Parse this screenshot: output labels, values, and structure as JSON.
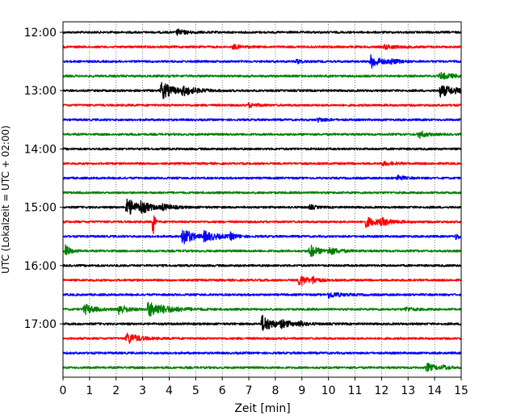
{
  "chart_data": {
    "type": "line",
    "title": "",
    "xlabel": "Zeit  [min]",
    "ylabel": "UTC (Lokalzeit = UTC + 02:00)",
    "xlim": [
      0,
      15
    ],
    "x_ticks": [
      0,
      1,
      2,
      3,
      4,
      5,
      6,
      7,
      8,
      9,
      10,
      11,
      12,
      13,
      14,
      15
    ],
    "y_ticks": [
      "12:00",
      "13:00",
      "14:00",
      "15:00",
      "16:00",
      "17:00"
    ],
    "grid": {
      "vertical": true,
      "style": "dotted"
    },
    "colors": [
      "#000000",
      "#ff0000",
      "#0000ff",
      "#008000"
    ],
    "row_interval_min": 15,
    "traces": [
      {
        "start": "12:00",
        "color": "#000000",
        "events": [
          [
            4.3,
            1.0,
            0.35
          ]
        ]
      },
      {
        "start": "12:15",
        "color": "#ff0000",
        "events": [
          [
            6.4,
            0.8,
            0.3
          ],
          [
            12.1,
            0.8,
            0.4
          ]
        ]
      },
      {
        "start": "12:30",
        "color": "#0000ff",
        "events": [
          [
            8.8,
            0.8,
            0.2
          ],
          [
            11.6,
            2.5,
            0.35
          ],
          [
            12.3,
            0.8,
            0.3
          ]
        ]
      },
      {
        "start": "12:45",
        "color": "#008000",
        "events": [
          [
            14.2,
            1.2,
            0.5
          ]
        ]
      },
      {
        "start": "13:00",
        "color": "#000000",
        "events": [
          [
            3.7,
            3.5,
            0.4
          ],
          [
            4.5,
            1.5,
            0.5
          ],
          [
            14.2,
            2.2,
            0.6
          ]
        ]
      },
      {
        "start": "13:15",
        "color": "#ff0000",
        "events": [
          [
            7.0,
            0.8,
            0.3
          ]
        ]
      },
      {
        "start": "13:30",
        "color": "#0000ff",
        "events": [
          [
            9.6,
            0.7,
            0.3
          ]
        ]
      },
      {
        "start": "13:45",
        "color": "#008000",
        "events": [
          [
            13.4,
            1.5,
            0.25
          ]
        ]
      },
      {
        "start": "14:00",
        "color": "#000000",
        "events": []
      },
      {
        "start": "14:15",
        "color": "#ff0000",
        "events": [
          [
            12.0,
            0.7,
            0.4
          ]
        ]
      },
      {
        "start": "14:30",
        "color": "#0000ff",
        "events": [
          [
            12.6,
            1.2,
            0.2
          ]
        ]
      },
      {
        "start": "14:45",
        "color": "#008000",
        "events": []
      },
      {
        "start": "15:00",
        "color": "#000000",
        "events": [
          [
            2.4,
            3.8,
            0.35
          ],
          [
            2.9,
            2.0,
            0.35
          ],
          [
            3.7,
            1.0,
            0.4
          ],
          [
            9.3,
            0.8,
            0.2
          ]
        ]
      },
      {
        "start": "15:15",
        "color": "#ff0000",
        "events": [
          [
            3.4,
            8.0,
            0.04
          ],
          [
            11.4,
            1.8,
            0.5
          ],
          [
            12.0,
            1.0,
            0.3
          ]
        ]
      },
      {
        "start": "15:30",
        "color": "#0000ff",
        "events": [
          [
            4.5,
            4.0,
            0.3
          ],
          [
            5.3,
            1.8,
            0.5
          ],
          [
            6.3,
            1.2,
            0.2
          ],
          [
            14.8,
            1.0,
            0.2
          ]
        ]
      },
      {
        "start": "15:45",
        "color": "#008000",
        "events": [
          [
            0.1,
            2.5,
            0.15
          ],
          [
            9.3,
            2.5,
            0.3
          ],
          [
            10.0,
            1.2,
            0.4
          ]
        ]
      },
      {
        "start": "16:00",
        "color": "#000000",
        "events": []
      },
      {
        "start": "16:15",
        "color": "#ff0000",
        "events": [
          [
            8.9,
            2.5,
            0.25
          ],
          [
            9.4,
            1.2,
            0.2
          ]
        ]
      },
      {
        "start": "16:30",
        "color": "#0000ff",
        "events": [
          [
            10.0,
            1.2,
            0.4
          ]
        ]
      },
      {
        "start": "16:45",
        "color": "#008000",
        "events": [
          [
            0.8,
            2.0,
            0.35
          ],
          [
            2.1,
            2.0,
            0.3
          ],
          [
            3.2,
            2.8,
            0.7
          ],
          [
            12.9,
            0.8,
            0.3
          ]
        ]
      },
      {
        "start": "17:00",
        "color": "#000000",
        "events": [
          [
            7.5,
            3.5,
            0.35
          ],
          [
            8.2,
            1.2,
            0.4
          ],
          [
            8.9,
            0.9,
            0.2
          ]
        ]
      },
      {
        "start": "17:15",
        "color": "#ff0000",
        "events": [
          [
            2.4,
            2.2,
            0.4
          ]
        ]
      },
      {
        "start": "17:30",
        "color": "#0000ff",
        "events": []
      },
      {
        "start": "17:45",
        "color": "#008000",
        "events": [
          [
            13.7,
            1.6,
            0.3
          ],
          [
            14.3,
            0.8,
            0.2
          ]
        ]
      }
    ]
  }
}
